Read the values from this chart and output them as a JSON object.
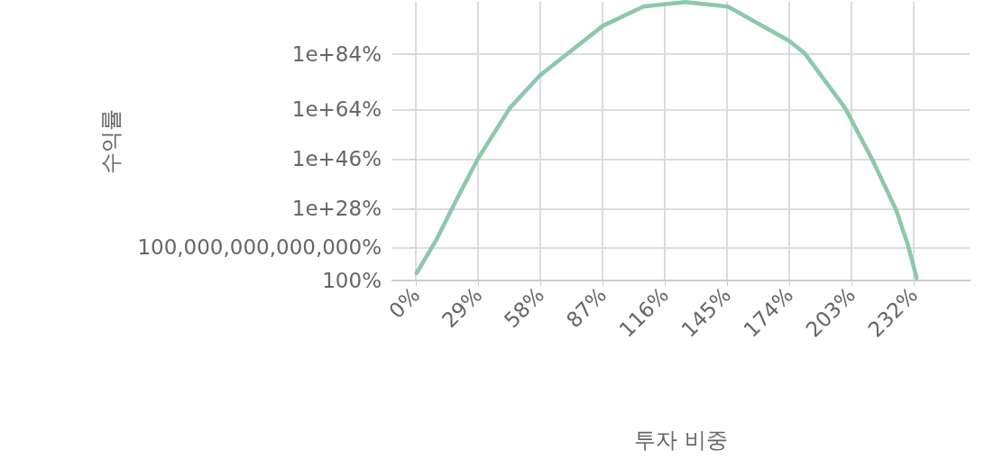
{
  "chart_data": {
    "type": "line",
    "xlabel": "투자 비중",
    "ylabel": "수익률",
    "log": "y",
    "grid": true,
    "x": [
      0.3,
      9.4,
      19.2,
      28.7,
      43.7,
      57.7,
      71,
      87.1,
      106,
      125.7,
      145.3,
      174,
      181,
      200,
      212.6,
      223.8,
      229.4,
      233.3
    ],
    "series": [
      {
        "color": "#86c5a5",
        "values": [
          50000.0,
          4e+16,
          6e+31,
          8e+45,
          3e+64,
          2e+76,
          3e+84,
          2e+94,
          2e+101,
          8e+102,
          2e+101,
          6e+88,
          3e+84,
          3e+64,
          8e+45,
          3e+27,
          300000000000000.0,
          1000
        ]
      }
    ],
    "xlim": [
      -11,
      258
    ],
    "xticks": [
      {
        "value": 0,
        "label": "0%"
      },
      {
        "value": 29,
        "label": "29%"
      },
      {
        "value": 58,
        "label": "58%"
      },
      {
        "value": 87,
        "label": "87%"
      },
      {
        "value": 116,
        "label": "116%"
      },
      {
        "value": 145,
        "label": "145%"
      },
      {
        "value": 174,
        "label": "174%"
      },
      {
        "value": 203,
        "label": "203%"
      },
      {
        "value": 232,
        "label": "232%"
      }
    ],
    "ylim": [
      100,
      1e+103
    ],
    "yticks": [
      {
        "value": 100,
        "label": "100%"
      },
      {
        "value": 100000000000000.0,
        "label": "100,000,000,000,000%"
      },
      {
        "value": 1e+28,
        "label": "1e+28%"
      },
      {
        "value": 1e+46,
        "label": "1e+46%"
      },
      {
        "value": 1e+64,
        "label": "1e+64%"
      },
      {
        "value": 1e+84,
        "label": "1e+84%"
      }
    ]
  }
}
